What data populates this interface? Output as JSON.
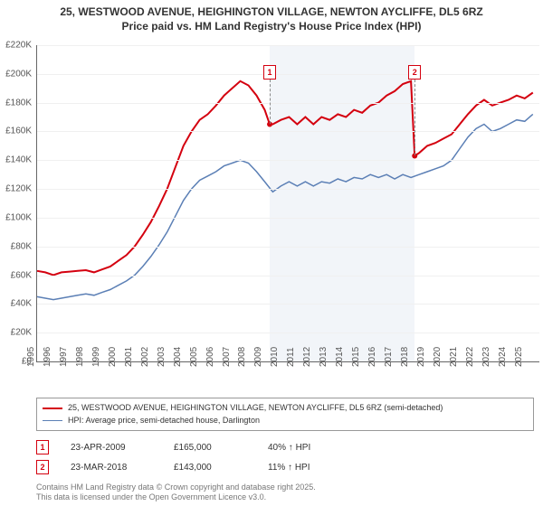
{
  "title_line1": "25, WESTWOOD AVENUE, HEIGHINGTON VILLAGE, NEWTON AYCLIFFE, DL5 6RZ",
  "title_line2": "Price paid vs. HM Land Registry's House Price Index (HPI)",
  "chart": {
    "type": "line",
    "background_color": "#ffffff",
    "grid_color": "#f0f0f0",
    "axis_color": "#666666",
    "ylim": [
      0,
      220000
    ],
    "ytick_step": 20000,
    "ytick_labels": [
      "£0",
      "£20K",
      "£40K",
      "£60K",
      "£80K",
      "£100K",
      "£120K",
      "£140K",
      "£160K",
      "£180K",
      "£200K",
      "£220K"
    ],
    "xlim": [
      1995,
      2025.9
    ],
    "xticks": [
      1995,
      1996,
      1997,
      1998,
      1999,
      2000,
      2001,
      2002,
      2003,
      2004,
      2005,
      2006,
      2007,
      2008,
      2009,
      2010,
      2011,
      2012,
      2013,
      2014,
      2015,
      2016,
      2017,
      2018,
      2019,
      2020,
      2021,
      2022,
      2023,
      2024,
      2025
    ],
    "shaded_band": {
      "from": 2009.31,
      "to": 2018.23,
      "color": "#e8ecf4"
    },
    "series": [
      {
        "name": "price_paid",
        "label": "25, WESTWOOD AVENUE, HEIGHINGTON VILLAGE, NEWTON AYCLIFFE, DL5 6RZ (semi-detached)",
        "color": "#d4000f",
        "line_width": 2,
        "points": [
          [
            1995,
            63000
          ],
          [
            1995.5,
            62000
          ],
          [
            1996,
            60000
          ],
          [
            1996.5,
            62000
          ],
          [
            1997,
            62500
          ],
          [
            1997.5,
            63000
          ],
          [
            1998,
            63500
          ],
          [
            1998.5,
            62000
          ],
          [
            1999,
            64000
          ],
          [
            1999.5,
            66000
          ],
          [
            2000,
            70000
          ],
          [
            2000.5,
            74000
          ],
          [
            2001,
            80000
          ],
          [
            2001.5,
            88000
          ],
          [
            2002,
            97000
          ],
          [
            2002.5,
            108000
          ],
          [
            2003,
            120000
          ],
          [
            2003.5,
            135000
          ],
          [
            2004,
            150000
          ],
          [
            2004.5,
            160000
          ],
          [
            2005,
            168000
          ],
          [
            2005.5,
            172000
          ],
          [
            2006,
            178000
          ],
          [
            2006.5,
            185000
          ],
          [
            2007,
            190000
          ],
          [
            2007.5,
            195000
          ],
          [
            2008,
            192000
          ],
          [
            2008.5,
            185000
          ],
          [
            2009,
            175000
          ],
          [
            2009.31,
            165000
          ],
          [
            2009.5,
            165000
          ],
          [
            2010,
            168000
          ],
          [
            2010.5,
            170000
          ],
          [
            2011,
            165000
          ],
          [
            2011.5,
            170000
          ],
          [
            2012,
            165000
          ],
          [
            2012.5,
            170000
          ],
          [
            2013,
            168000
          ],
          [
            2013.5,
            172000
          ],
          [
            2014,
            170000
          ],
          [
            2014.5,
            175000
          ],
          [
            2015,
            173000
          ],
          [
            2015.5,
            178000
          ],
          [
            2016,
            180000
          ],
          [
            2016.5,
            185000
          ],
          [
            2017,
            188000
          ],
          [
            2017.5,
            193000
          ],
          [
            2018,
            195000
          ],
          [
            2018.23,
            143000
          ],
          [
            2018.5,
            145000
          ],
          [
            2019,
            150000
          ],
          [
            2019.5,
            152000
          ],
          [
            2020,
            155000
          ],
          [
            2020.5,
            158000
          ],
          [
            2021,
            165000
          ],
          [
            2021.5,
            172000
          ],
          [
            2022,
            178000
          ],
          [
            2022.5,
            182000
          ],
          [
            2023,
            178000
          ],
          [
            2023.5,
            180000
          ],
          [
            2024,
            182000
          ],
          [
            2024.5,
            185000
          ],
          [
            2025,
            183000
          ],
          [
            2025.5,
            187000
          ]
        ]
      },
      {
        "name": "hpi",
        "label": "HPI: Average price, semi-detached house, Darlington",
        "color": "#5b7fb5",
        "line_width": 1.5,
        "points": [
          [
            1995,
            45000
          ],
          [
            1995.5,
            44000
          ],
          [
            1996,
            43000
          ],
          [
            1996.5,
            44000
          ],
          [
            1997,
            45000
          ],
          [
            1997.5,
            46000
          ],
          [
            1998,
            47000
          ],
          [
            1998.5,
            46000
          ],
          [
            1999,
            48000
          ],
          [
            1999.5,
            50000
          ],
          [
            2000,
            53000
          ],
          [
            2000.5,
            56000
          ],
          [
            2001,
            60000
          ],
          [
            2001.5,
            66000
          ],
          [
            2002,
            73000
          ],
          [
            2002.5,
            81000
          ],
          [
            2003,
            90000
          ],
          [
            2003.5,
            101000
          ],
          [
            2004,
            112000
          ],
          [
            2004.5,
            120000
          ],
          [
            2005,
            126000
          ],
          [
            2005.5,
            129000
          ],
          [
            2006,
            132000
          ],
          [
            2006.5,
            136000
          ],
          [
            2007,
            138000
          ],
          [
            2007.5,
            140000
          ],
          [
            2008,
            138000
          ],
          [
            2008.5,
            132000
          ],
          [
            2009,
            125000
          ],
          [
            2009.5,
            118000
          ],
          [
            2010,
            122000
          ],
          [
            2010.5,
            125000
          ],
          [
            2011,
            122000
          ],
          [
            2011.5,
            125000
          ],
          [
            2012,
            122000
          ],
          [
            2012.5,
            125000
          ],
          [
            2013,
            124000
          ],
          [
            2013.5,
            127000
          ],
          [
            2014,
            125000
          ],
          [
            2014.5,
            128000
          ],
          [
            2015,
            127000
          ],
          [
            2015.5,
            130000
          ],
          [
            2016,
            128000
          ],
          [
            2016.5,
            130000
          ],
          [
            2017,
            127000
          ],
          [
            2017.5,
            130000
          ],
          [
            2018,
            128000
          ],
          [
            2018.5,
            130000
          ],
          [
            2019,
            132000
          ],
          [
            2019.5,
            134000
          ],
          [
            2020,
            136000
          ],
          [
            2020.5,
            140000
          ],
          [
            2021,
            148000
          ],
          [
            2021.5,
            156000
          ],
          [
            2022,
            162000
          ],
          [
            2022.5,
            165000
          ],
          [
            2023,
            160000
          ],
          [
            2023.5,
            162000
          ],
          [
            2024,
            165000
          ],
          [
            2024.5,
            168000
          ],
          [
            2025,
            167000
          ],
          [
            2025.5,
            172000
          ]
        ]
      }
    ],
    "markers": [
      {
        "id": "1",
        "x": 2009.31,
        "y_box": 205000,
        "y_point": 165000,
        "color": "#d4000f"
      },
      {
        "id": "2",
        "x": 2018.23,
        "y_box": 205000,
        "y_point": 143000,
        "color": "#d4000f"
      }
    ]
  },
  "sales": [
    {
      "id": "1",
      "date": "23-APR-2009",
      "price": "£165,000",
      "hpi": "40% ↑ HPI",
      "color": "#d4000f"
    },
    {
      "id": "2",
      "date": "23-MAR-2018",
      "price": "£143,000",
      "hpi": "11% ↑ HPI",
      "color": "#d4000f"
    }
  ],
  "footnote_line1": "Contains HM Land Registry data © Crown copyright and database right 2025.",
  "footnote_line2": "This data is licensed under the Open Government Licence v3.0."
}
